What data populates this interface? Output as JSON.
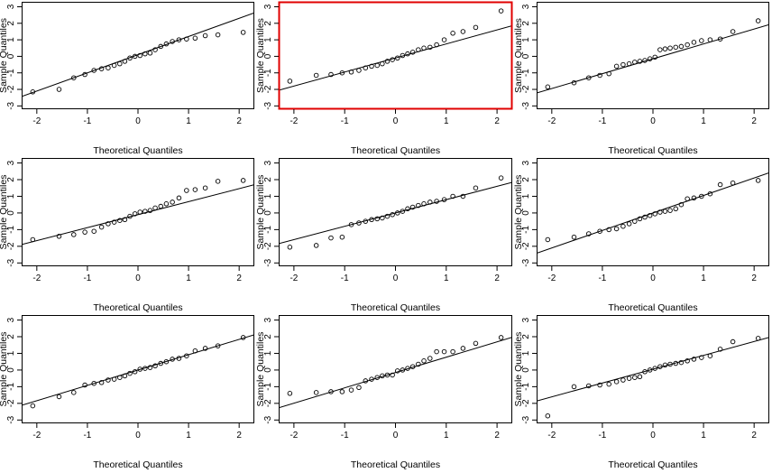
{
  "figure": {
    "highlight_color": "#e00000",
    "point_color": "#000000",
    "line_color": "#000000"
  },
  "chart_data": [
    {
      "type": "scatter",
      "xlabel": "Theoretical Quantiles",
      "ylabel": "Sample Quantiles",
      "xlim": [
        -2.3,
        2.3
      ],
      "ylim": [
        -3.2,
        3.3
      ],
      "xticks": [
        -2,
        -1,
        0,
        1,
        2
      ],
      "yticks": [
        -3,
        -2,
        -1,
        0,
        1,
        2,
        3
      ],
      "grid": false,
      "highlighted": false,
      "x": [
        -2.08,
        -1.56,
        -1.27,
        -1.05,
        -0.87,
        -0.72,
        -0.59,
        -0.47,
        -0.36,
        -0.26,
        -0.16,
        -0.06,
        0.04,
        0.14,
        0.24,
        0.34,
        0.45,
        0.56,
        0.68,
        0.81,
        0.96,
        1.13,
        1.33,
        1.58,
        2.08
      ],
      "y": [
        -2.15,
        -2.0,
        -1.3,
        -1.1,
        -0.85,
        -0.75,
        -0.7,
        -0.55,
        -0.45,
        -0.3,
        -0.1,
        0.0,
        0.05,
        0.15,
        0.2,
        0.4,
        0.6,
        0.75,
        0.9,
        1.0,
        1.05,
        1.1,
        1.25,
        1.3,
        1.45
      ],
      "reference_line": {
        "intercept": 0.1,
        "slope": 1.1
      }
    },
    {
      "type": "scatter",
      "xlabel": "Theoretical Quantiles",
      "ylabel": "Sample Quantiles",
      "xlim": [
        -2.3,
        2.3
      ],
      "ylim": [
        -3.2,
        3.3
      ],
      "xticks": [
        -2,
        -1,
        0,
        1,
        2
      ],
      "yticks": [
        -3,
        -2,
        -1,
        0,
        1,
        2,
        3
      ],
      "grid": false,
      "highlighted": true,
      "x": [
        -2.08,
        -1.56,
        -1.27,
        -1.05,
        -0.87,
        -0.72,
        -0.59,
        -0.47,
        -0.36,
        -0.26,
        -0.16,
        -0.06,
        0.04,
        0.14,
        0.24,
        0.34,
        0.45,
        0.56,
        0.68,
        0.81,
        0.96,
        1.13,
        1.33,
        1.58,
        2.08
      ],
      "y": [
        -1.5,
        -1.15,
        -1.1,
        -1.0,
        -0.95,
        -0.85,
        -0.7,
        -0.6,
        -0.55,
        -0.45,
        -0.3,
        -0.2,
        -0.1,
        0.05,
        0.15,
        0.25,
        0.4,
        0.5,
        0.55,
        0.7,
        1.0,
        1.4,
        1.5,
        1.75,
        2.75
      ],
      "reference_line": {
        "intercept": -0.1,
        "slope": 0.85
      }
    },
    {
      "type": "scatter",
      "xlabel": "Theoretical Quantiles",
      "ylabel": "Sample Quantiles",
      "xlim": [
        -2.3,
        2.3
      ],
      "ylim": [
        -3.2,
        3.3
      ],
      "xticks": [
        -2,
        -1,
        0,
        1,
        2
      ],
      "yticks": [
        -3,
        -2,
        -1,
        0,
        1,
        2,
        3
      ],
      "grid": false,
      "highlighted": false,
      "x": [
        -2.08,
        -1.56,
        -1.27,
        -1.05,
        -0.87,
        -0.72,
        -0.59,
        -0.47,
        -0.36,
        -0.26,
        -0.16,
        -0.06,
        0.04,
        0.14,
        0.24,
        0.34,
        0.45,
        0.56,
        0.68,
        0.81,
        0.96,
        1.13,
        1.33,
        1.58,
        2.08
      ],
      "y": [
        -1.85,
        -1.6,
        -1.3,
        -1.15,
        -1.05,
        -0.6,
        -0.5,
        -0.45,
        -0.35,
        -0.3,
        -0.25,
        -0.15,
        -0.05,
        0.4,
        0.45,
        0.5,
        0.55,
        0.6,
        0.7,
        0.85,
        0.95,
        1.0,
        1.05,
        1.5,
        2.15
      ],
      "reference_line": {
        "intercept": -0.15,
        "slope": 0.9
      }
    },
    {
      "type": "scatter",
      "xlabel": "Theoretical Quantiles",
      "ylabel": "Sample Quantiles",
      "xlim": [
        -2.3,
        2.3
      ],
      "ylim": [
        -3.2,
        3.3
      ],
      "xticks": [
        -2,
        -1,
        0,
        1,
        2
      ],
      "yticks": [
        -3,
        -2,
        -1,
        0,
        1,
        2,
        3
      ],
      "grid": false,
      "highlighted": false,
      "x": [
        -2.08,
        -1.56,
        -1.27,
        -1.05,
        -0.87,
        -0.72,
        -0.59,
        -0.47,
        -0.36,
        -0.26,
        -0.16,
        -0.06,
        0.04,
        0.14,
        0.24,
        0.34,
        0.45,
        0.56,
        0.68,
        0.81,
        0.96,
        1.13,
        1.33,
        1.58,
        2.08
      ],
      "y": [
        -1.6,
        -1.4,
        -1.3,
        -1.15,
        -1.1,
        -0.85,
        -0.65,
        -0.55,
        -0.45,
        -0.4,
        -0.2,
        -0.05,
        0.05,
        0.1,
        0.15,
        0.3,
        0.4,
        0.55,
        0.65,
        0.9,
        1.35,
        1.4,
        1.5,
        1.9,
        1.95
      ],
      "reference_line": {
        "intercept": -0.1,
        "slope": 0.78
      }
    },
    {
      "type": "scatter",
      "xlabel": "Theoretical Quantiles",
      "ylabel": "Sample Quantiles",
      "xlim": [
        -2.3,
        2.3
      ],
      "ylim": [
        -3.2,
        3.3
      ],
      "xticks": [
        -2,
        -1,
        0,
        1,
        2
      ],
      "yticks": [
        -3,
        -2,
        -1,
        0,
        1,
        2,
        3
      ],
      "grid": false,
      "highlighted": false,
      "x": [
        -2.08,
        -1.56,
        -1.27,
        -1.05,
        -0.87,
        -0.72,
        -0.59,
        -0.47,
        -0.36,
        -0.26,
        -0.16,
        -0.06,
        0.04,
        0.14,
        0.24,
        0.34,
        0.45,
        0.56,
        0.68,
        0.81,
        0.96,
        1.13,
        1.33,
        1.58,
        2.08
      ],
      "y": [
        -2.05,
        -1.95,
        -1.5,
        -1.45,
        -0.7,
        -0.6,
        -0.5,
        -0.4,
        -0.35,
        -0.3,
        -0.2,
        -0.1,
        0.0,
        0.1,
        0.25,
        0.35,
        0.45,
        0.55,
        0.65,
        0.7,
        0.8,
        1.0,
        1.0,
        1.5,
        2.1
      ],
      "reference_line": {
        "intercept": 0.0,
        "slope": 0.8
      }
    },
    {
      "type": "scatter",
      "xlabel": "Theoretical Quantiles",
      "ylabel": "Sample Quantiles",
      "xlim": [
        -2.3,
        2.3
      ],
      "ylim": [
        -3.2,
        3.3
      ],
      "xticks": [
        -2,
        -1,
        0,
        1,
        2
      ],
      "yticks": [
        -3,
        -2,
        -1,
        0,
        1,
        2,
        3
      ],
      "grid": false,
      "highlighted": false,
      "x": [
        -2.08,
        -1.56,
        -1.27,
        -1.05,
        -0.87,
        -0.72,
        -0.59,
        -0.47,
        -0.36,
        -0.26,
        -0.16,
        -0.06,
        0.04,
        0.14,
        0.24,
        0.34,
        0.45,
        0.56,
        0.68,
        0.81,
        0.96,
        1.13,
        1.33,
        1.58,
        2.08
      ],
      "y": [
        -1.6,
        -1.45,
        -1.25,
        -1.1,
        -1.0,
        -0.95,
        -0.8,
        -0.65,
        -0.5,
        -0.35,
        -0.25,
        -0.15,
        -0.05,
        0.05,
        0.1,
        0.15,
        0.25,
        0.5,
        0.85,
        0.9,
        1.0,
        1.15,
        1.7,
        1.8,
        1.95
      ],
      "reference_line": {
        "intercept": 0.0,
        "slope": 1.05
      }
    },
    {
      "type": "scatter",
      "xlabel": "Theoretical Quantiles",
      "ylabel": "Sample Quantiles",
      "xlim": [
        -2.3,
        2.3
      ],
      "ylim": [
        -3.2,
        3.3
      ],
      "xticks": [
        -2,
        -1,
        0,
        1,
        2
      ],
      "yticks": [
        -3,
        -2,
        -1,
        0,
        1,
        2,
        3
      ],
      "grid": false,
      "highlighted": false,
      "x": [
        -2.08,
        -1.56,
        -1.27,
        -1.05,
        -0.87,
        -0.72,
        -0.59,
        -0.47,
        -0.36,
        -0.26,
        -0.16,
        -0.06,
        0.04,
        0.14,
        0.24,
        0.34,
        0.45,
        0.56,
        0.68,
        0.81,
        0.96,
        1.13,
        1.33,
        1.58,
        2.08
      ],
      "y": [
        -2.15,
        -1.6,
        -1.35,
        -0.9,
        -0.8,
        -0.75,
        -0.6,
        -0.55,
        -0.45,
        -0.35,
        -0.2,
        -0.1,
        0.05,
        0.1,
        0.15,
        0.25,
        0.4,
        0.5,
        0.65,
        0.7,
        0.85,
        1.15,
        1.3,
        1.45,
        1.95
      ],
      "reference_line": {
        "intercept": 0.0,
        "slope": 0.92
      }
    },
    {
      "type": "scatter",
      "xlabel": "Theoretical Quantiles",
      "ylabel": "Sample Quantiles",
      "xlim": [
        -2.3,
        2.3
      ],
      "ylim": [
        -3.2,
        3.3
      ],
      "xticks": [
        -2,
        -1,
        0,
        1,
        2
      ],
      "yticks": [
        -3,
        -2,
        -1,
        0,
        1,
        2,
        3
      ],
      "grid": false,
      "highlighted": false,
      "x": [
        -2.08,
        -1.56,
        -1.27,
        -1.05,
        -0.87,
        -0.72,
        -0.59,
        -0.47,
        -0.36,
        -0.26,
        -0.16,
        -0.06,
        0.04,
        0.14,
        0.24,
        0.34,
        0.45,
        0.56,
        0.68,
        0.81,
        0.96,
        1.13,
        1.33,
        1.58,
        2.08
      ],
      "y": [
        -1.4,
        -1.35,
        -1.3,
        -1.3,
        -1.2,
        -1.05,
        -0.65,
        -0.55,
        -0.45,
        -0.35,
        -0.3,
        -0.3,
        -0.05,
        0.0,
        0.1,
        0.2,
        0.35,
        0.55,
        0.7,
        1.1,
        1.1,
        1.1,
        1.3,
        1.6,
        1.95
      ],
      "reference_line": {
        "intercept": -0.15,
        "slope": 0.92
      }
    },
    {
      "type": "scatter",
      "xlabel": "Theoretical Quantiles",
      "ylabel": "Sample Quantiles",
      "xlim": [
        -2.3,
        2.3
      ],
      "ylim": [
        -3.2,
        3.3
      ],
      "xticks": [
        -2,
        -1,
        0,
        1,
        2
      ],
      "yticks": [
        -3,
        -2,
        -1,
        0,
        1,
        2,
        3
      ],
      "grid": false,
      "highlighted": false,
      "x": [
        -2.08,
        -1.56,
        -1.27,
        -1.05,
        -0.87,
        -0.72,
        -0.59,
        -0.47,
        -0.36,
        -0.26,
        -0.16,
        -0.06,
        0.04,
        0.14,
        0.24,
        0.34,
        0.45,
        0.56,
        0.68,
        0.81,
        0.96,
        1.13,
        1.33,
        1.58,
        2.08
      ],
      "y": [
        -2.75,
        -1.0,
        -0.95,
        -0.9,
        -0.85,
        -0.7,
        -0.6,
        -0.5,
        -0.45,
        -0.4,
        -0.1,
        0.0,
        0.1,
        0.2,
        0.3,
        0.35,
        0.4,
        0.45,
        0.55,
        0.65,
        0.75,
        0.85,
        1.25,
        1.7,
        1.9
      ],
      "reference_line": {
        "intercept": 0.05,
        "slope": 0.83
      }
    }
  ]
}
